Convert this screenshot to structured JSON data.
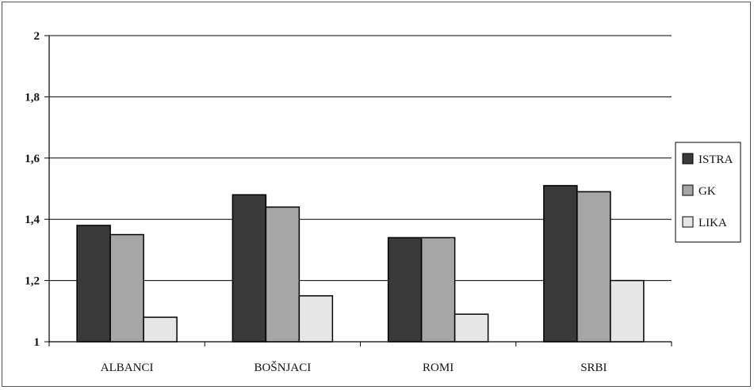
{
  "chart_data": {
    "type": "bar",
    "categories": [
      "ALBANCI",
      "BOŠNJACI",
      "ROMI",
      "SRBI"
    ],
    "series": [
      {
        "name": "ISTRA",
        "values": [
          1.38,
          1.48,
          1.34,
          1.51
        ],
        "color": "#3a3a3a"
      },
      {
        "name": "GK",
        "values": [
          1.35,
          1.44,
          1.34,
          1.49
        ],
        "color": "#a6a6a6"
      },
      {
        "name": "LIKA",
        "values": [
          1.08,
          1.15,
          1.09,
          1.2
        ],
        "color": "#e6e6e6"
      }
    ],
    "ylim": [
      1,
      2
    ],
    "yticks": [
      "1",
      "1,2",
      "1,4",
      "1,6",
      "1,8",
      "2"
    ],
    "ytick_values": [
      1,
      1.2,
      1.4,
      1.6,
      1.8,
      2
    ],
    "grid": true,
    "legend_position": "right"
  }
}
